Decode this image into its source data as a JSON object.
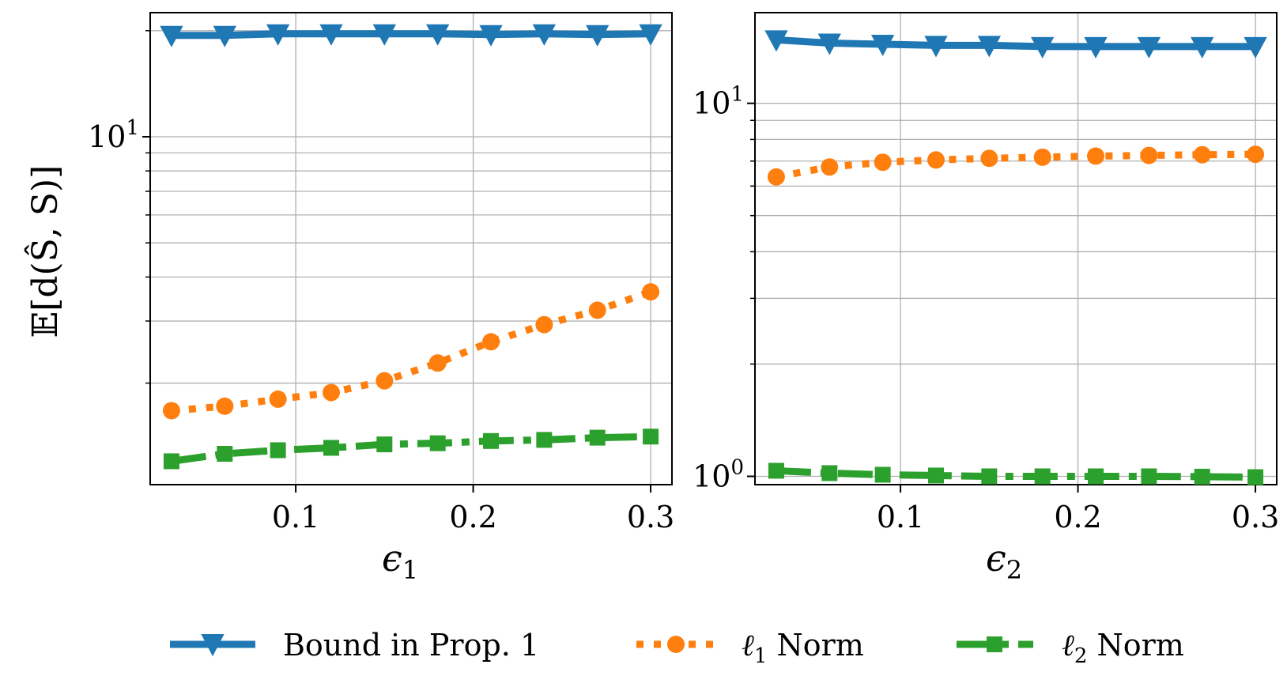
{
  "chart_data": [
    {
      "type": "line",
      "panel": "left",
      "yscale": "log",
      "xlabel": "ϵ",
      "xlabel_sub": "1",
      "ylabel": "𝔼[d(Ŝ, S)]",
      "xlim": [
        0.018,
        0.312
      ],
      "ylim": [
        1.03,
        22.5
      ],
      "xticks": [
        0.1,
        0.2,
        0.3
      ],
      "xtick_labels": [
        "0.1",
        "0.2",
        "0.3"
      ],
      "yticks": [
        10
      ],
      "ytick_labels": [
        {
          "base": "10",
          "exp": "1"
        }
      ],
      "minor_yticks": [
        2,
        3,
        4,
        5,
        6,
        7,
        8,
        9,
        20
      ],
      "x": [
        0.03,
        0.06,
        0.09,
        0.12,
        0.15,
        0.18,
        0.21,
        0.24,
        0.27,
        0.3
      ],
      "series": [
        {
          "name": "Bound in Prop. 1",
          "values": [
            19.4,
            19.4,
            19.6,
            19.6,
            19.6,
            19.6,
            19.5,
            19.6,
            19.5,
            19.6
          ]
        },
        {
          "name": "ℓ1 Norm",
          "values": [
            1.67,
            1.72,
            1.8,
            1.88,
            2.03,
            2.28,
            2.62,
            2.93,
            3.22,
            3.63
          ]
        },
        {
          "name": "ℓ2 Norm",
          "values": [
            1.2,
            1.26,
            1.29,
            1.31,
            1.34,
            1.35,
            1.37,
            1.38,
            1.4,
            1.41
          ]
        }
      ]
    },
    {
      "type": "line",
      "panel": "right",
      "yscale": "log",
      "xlabel": "ϵ",
      "xlabel_sub": "2",
      "ylabel": "",
      "xlim": [
        0.018,
        0.312
      ],
      "ylim": [
        0.95,
        17.5
      ],
      "xticks": [
        0.1,
        0.2,
        0.3
      ],
      "xtick_labels": [
        "0.1",
        "0.2",
        "0.3"
      ],
      "yticks": [
        1,
        10
      ],
      "ytick_labels": [
        {
          "base": "10",
          "exp": "0"
        },
        {
          "base": "10",
          "exp": "1"
        }
      ],
      "minor_yticks": [
        2,
        3,
        4,
        5,
        6,
        7,
        8,
        9
      ],
      "x": [
        0.03,
        0.06,
        0.09,
        0.12,
        0.15,
        0.18,
        0.21,
        0.24,
        0.27,
        0.3
      ],
      "series": [
        {
          "name": "Bound in Prop. 1",
          "values": [
            14.8,
            14.5,
            14.4,
            14.3,
            14.3,
            14.2,
            14.2,
            14.2,
            14.2,
            14.2
          ]
        },
        {
          "name": "ℓ1 Norm",
          "values": [
            6.35,
            6.75,
            6.95,
            7.05,
            7.12,
            7.17,
            7.22,
            7.25,
            7.28,
            7.3
          ]
        },
        {
          "name": "ℓ2 Norm",
          "values": [
            1.035,
            1.02,
            1.01,
            1.005,
            1.0,
            1.0,
            1.0,
            1.0,
            0.998,
            0.995
          ]
        }
      ]
    }
  ],
  "legend": {
    "placement": "bottom",
    "entries": [
      {
        "label": "Bound in Prop. 1",
        "color": "#1f77b4",
        "marker": "triangle-down",
        "style": "solid"
      },
      {
        "label_prefix": "ℓ",
        "label_sub": "1",
        "label_suffix": " Norm",
        "color": "#ff7f0e",
        "marker": "circle",
        "style": "dotted"
      },
      {
        "label_prefix": "ℓ",
        "label_sub": "2",
        "label_suffix": " Norm",
        "color": "#2ca02c",
        "marker": "square",
        "style": "dashdot"
      }
    ]
  },
  "colors": {
    "blue": "#1f77b4",
    "orange": "#ff7f0e",
    "green": "#2ca02c",
    "grid": "#b0b0b0"
  }
}
